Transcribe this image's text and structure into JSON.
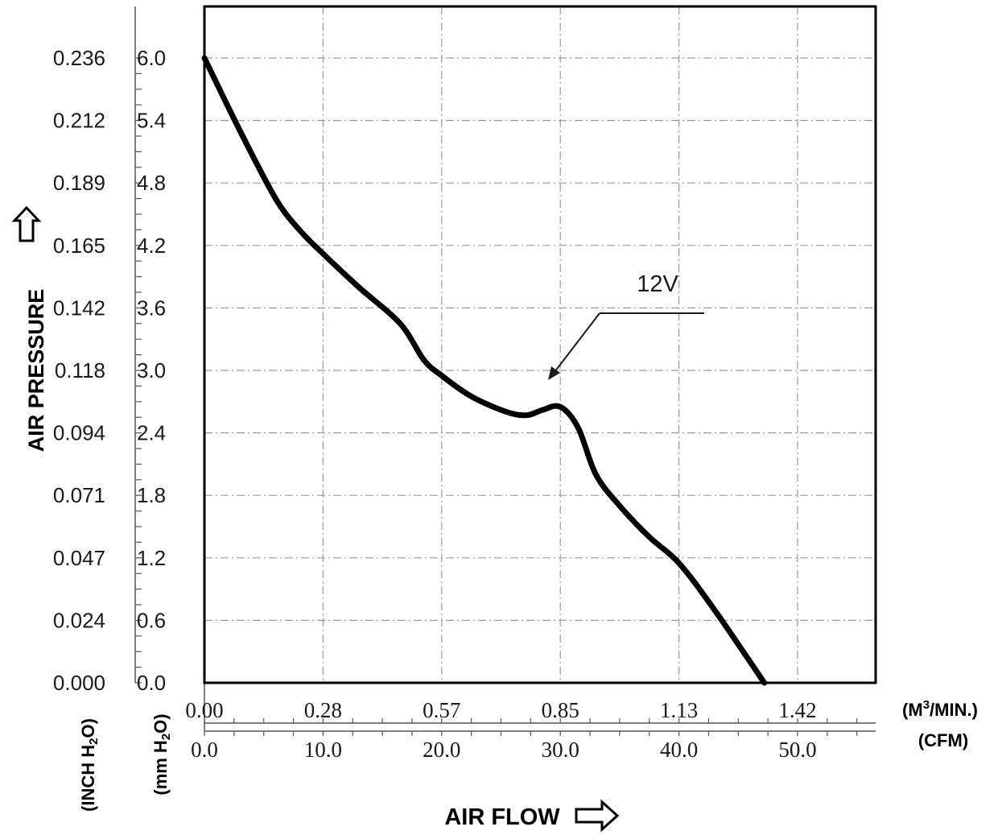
{
  "chart_data": {
    "type": "line",
    "y_axis": {
      "title": "AIR PRESSURE",
      "inch_unit_label": "(INCH H",
      "inch_unit_sub": "2",
      "inch_unit_end": "O)",
      "mm_unit_label": "(mm H",
      "mm_unit_sub": "2",
      "mm_unit_end": "O)",
      "mm_ticks": [
        "0.0",
        "0.6",
        "1.2",
        "1.8",
        "2.4",
        "3.0",
        "3.6",
        "4.2",
        "4.8",
        "5.4",
        "6.0"
      ],
      "inch_ticks": [
        "0.000",
        "0.024",
        "0.047",
        "0.071",
        "0.094",
        "0.118",
        "0.142",
        "0.165",
        "0.189",
        "0.212",
        "0.236"
      ],
      "ylim": [
        0,
        6.0
      ]
    },
    "x_axis": {
      "title": "AIR FLOW",
      "m3_unit_label": "(M",
      "m3_unit_sup": "3",
      "m3_unit_end": "/MIN.)",
      "cfm_unit_label": "(CFM)",
      "m3_ticks": [
        "0.00",
        "0.28",
        "0.57",
        "0.85",
        "1.13",
        "1.42"
      ],
      "cfm_ticks": [
        "0.0",
        "10.0",
        "20.0",
        "30.0",
        "40.0",
        "50.0"
      ],
      "xlim": [
        0,
        56.67
      ]
    },
    "series": [
      {
        "name": "12V",
        "x": [
          0.0,
          3.0,
          6.0,
          8.0,
          10.0,
          13.0,
          16.5,
          18.5,
          20.0,
          22.5,
          25.5,
          27.2,
          28.5,
          30.0,
          31.5,
          33.0,
          35.0,
          37.5,
          40.0,
          43.0,
          47.2
        ],
        "y": [
          6.0,
          5.3,
          4.65,
          4.35,
          4.12,
          3.8,
          3.45,
          3.1,
          2.95,
          2.75,
          2.6,
          2.57,
          2.62,
          2.65,
          2.45,
          2.0,
          1.7,
          1.4,
          1.15,
          0.7,
          0.0
        ]
      }
    ],
    "annotation": "12V",
    "grid": true
  }
}
